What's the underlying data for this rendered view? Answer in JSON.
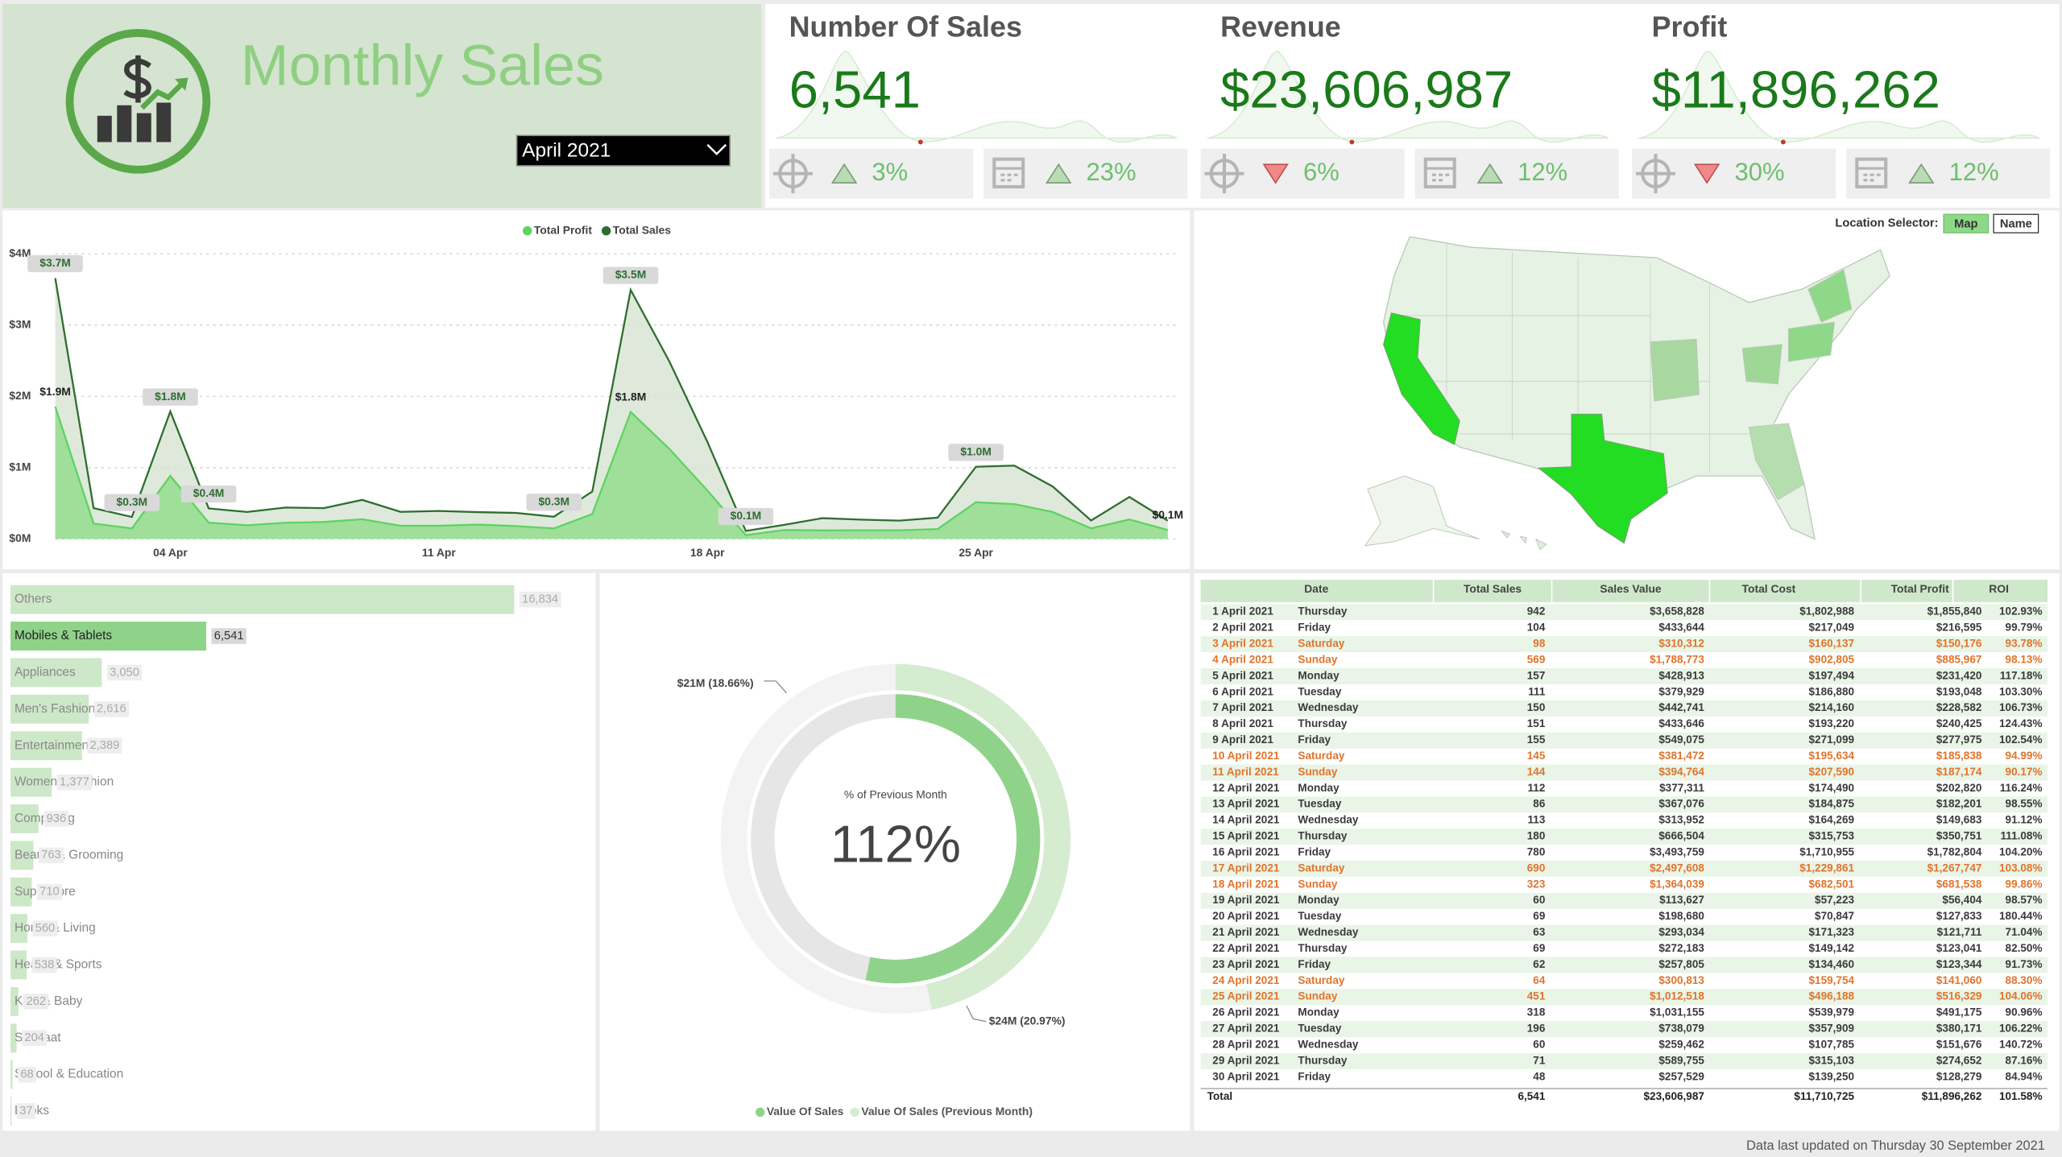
{
  "header": {
    "title": "Monthly Sales",
    "period": "April 2021"
  },
  "kpis": [
    {
      "title": "Number Of Sales",
      "value": "6,541",
      "changes": [
        {
          "value": "3%",
          "trend": "up"
        },
        {
          "value": "23%",
          "trend": "up"
        }
      ]
    },
    {
      "title": "Revenue",
      "value": "$23,606,987",
      "changes": [
        {
          "value": "6%",
          "trend": "down"
        },
        {
          "value": "12%",
          "trend": "up"
        }
      ]
    },
    {
      "title": "Profit",
      "value": "$11,896,262",
      "changes": [
        {
          "value": "30%",
          "trend": "down"
        },
        {
          "value": "12%",
          "trend": "up"
        }
      ]
    }
  ],
  "chart_data": [
    {
      "type": "area",
      "categories": [
        null,
        null,
        null,
        "04 Apr",
        null,
        null,
        null,
        null,
        null,
        null,
        "11 Apr",
        null,
        null,
        null,
        null,
        null,
        null,
        "18 Apr",
        null,
        null,
        null,
        null,
        null,
        null,
        "25 Apr",
        null,
        null,
        null,
        null,
        null
      ],
      "ylim": [
        0,
        4
      ],
      "yticks": [
        {
          "value": 0,
          "label": "$0M"
        },
        {
          "value": 1,
          "label": "$1M"
        },
        {
          "value": 2,
          "label": "$2M"
        },
        {
          "value": 3,
          "label": "$3M"
        },
        {
          "value": 4,
          "label": "$4M"
        }
      ],
      "grid": true,
      "series": [
        {
          "name": "Total Profit",
          "color": "#5fd35f",
          "fill": "#8fdc8a",
          "label_style": "plain",
          "values": [
            1.856,
            0.217,
            0.15,
            0.886,
            0.231,
            0.193,
            0.229,
            0.24,
            0.278,
            0.186,
            0.187,
            0.203,
            0.182,
            0.15,
            0.351,
            1.783,
            1.268,
            0.682,
            0.056,
            0.128,
            0.122,
            0.123,
            0.123,
            0.141,
            0.516,
            0.491,
            0.38,
            0.152,
            0.275,
            0.128
          ],
          "value_labels": [
            "$1.9M",
            null,
            null,
            null,
            null,
            null,
            null,
            null,
            null,
            null,
            null,
            null,
            null,
            null,
            null,
            "$1.8M",
            null,
            null,
            null,
            null,
            null,
            null,
            null,
            null,
            null,
            null,
            null,
            null,
            null,
            "$0.1M"
          ]
        },
        {
          "name": "Total Sales",
          "color": "#2e6e2e",
          "fill": "#d6e4d3",
          "label_style": "box",
          "values": [
            3.659,
            0.434,
            0.31,
            1.789,
            0.429,
            0.38,
            0.443,
            0.434,
            0.549,
            0.381,
            0.395,
            0.377,
            0.367,
            0.314,
            0.667,
            3.494,
            2.498,
            1.364,
            0.114,
            0.199,
            0.293,
            0.272,
            0.258,
            0.301,
            1.013,
            1.031,
            0.738,
            0.259,
            0.59,
            0.258
          ],
          "value_labels": [
            "$3.7M",
            null,
            "$0.3M",
            "$1.8M",
            "$0.4M",
            null,
            null,
            null,
            null,
            null,
            null,
            null,
            null,
            "$0.3M",
            null,
            "$3.5M",
            null,
            null,
            "$0.1M",
            null,
            null,
            null,
            null,
            null,
            "$1.0M",
            null,
            null,
            null,
            null,
            null
          ]
        }
      ]
    },
    {
      "type": "hbar",
      "color": "#cde8c8",
      "highlight_color": "#8fd38a",
      "highlight_index": 1,
      "categories": [
        "Others",
        "Mobiles & Tablets",
        "Appliances",
        "Men's Fashion",
        "Entertainment",
        "Women's Fashion",
        "Computing",
        "Beauty & Grooming",
        "Superstore",
        "Home & Living",
        "Health & Sports",
        "Kids & Baby",
        "Soghaat",
        "School & Education",
        "Books"
      ],
      "values": [
        16834,
        6541,
        3050,
        2616,
        2389,
        1377,
        936,
        763,
        710,
        560,
        538,
        262,
        204,
        68,
        37
      ],
      "value_labels": [
        "16,834",
        "6,541",
        "3,050",
        "2,616",
        "2,389",
        "1,377",
        "936",
        "763",
        "710",
        "560",
        "538",
        "262",
        "204",
        "68",
        "37"
      ]
    },
    {
      "type": "donut",
      "center_label": "% of Previous Month",
      "center_value": "112%",
      "series": [
        {
          "name": "Value Of Sales",
          "color": "#8fd38a",
          "value": 24,
          "value_label": "$24M (20.97%)"
        },
        {
          "name": "Value Of Sales (Previous Month)",
          "color": "#d5ecd1",
          "value": 21,
          "value_label": "$21M (18.66%)"
        }
      ]
    }
  ],
  "map": {
    "selector_label": "Location Selector:",
    "buttons": [
      "Map",
      "Name"
    ],
    "active": 0
  },
  "table": {
    "columns": [
      "Date",
      "Total Sales",
      "Sales Value",
      "Total Cost",
      "Total Profit",
      "ROI"
    ],
    "weekend_rows": [
      2,
      3,
      9,
      10,
      16,
      17,
      23,
      24
    ],
    "rows": [
      [
        "1 April 2021",
        "Thursday",
        "942",
        "$3,658,828",
        "$1,802,988",
        "$1,855,840",
        "102.93%"
      ],
      [
        "2 April 2021",
        "Friday",
        "104",
        "$433,644",
        "$217,049",
        "$216,595",
        "99.79%"
      ],
      [
        "3 April 2021",
        "Saturday",
        "98",
        "$310,312",
        "$160,137",
        "$150,176",
        "93.78%"
      ],
      [
        "4 April 2021",
        "Sunday",
        "569",
        "$1,788,773",
        "$902,805",
        "$885,967",
        "98.13%"
      ],
      [
        "5 April 2021",
        "Monday",
        "157",
        "$428,913",
        "$197,494",
        "$231,420",
        "117.18%"
      ],
      [
        "6 April 2021",
        "Tuesday",
        "111",
        "$379,929",
        "$186,880",
        "$193,048",
        "103.30%"
      ],
      [
        "7 April 2021",
        "Wednesday",
        "150",
        "$442,741",
        "$214,160",
        "$228,582",
        "106.73%"
      ],
      [
        "8 April 2021",
        "Thursday",
        "151",
        "$433,646",
        "$193,220",
        "$240,425",
        "124.43%"
      ],
      [
        "9 April 2021",
        "Friday",
        "155",
        "$549,075",
        "$271,099",
        "$277,975",
        "102.54%"
      ],
      [
        "10 April 2021",
        "Saturday",
        "145",
        "$381,472",
        "$195,634",
        "$185,838",
        "94.99%"
      ],
      [
        "11 April 2021",
        "Sunday",
        "144",
        "$394,764",
        "$207,590",
        "$187,174",
        "90.17%"
      ],
      [
        "12 April 2021",
        "Monday",
        "112",
        "$377,311",
        "$174,490",
        "$202,820",
        "116.24%"
      ],
      [
        "13 April 2021",
        "Tuesday",
        "86",
        "$367,076",
        "$184,875",
        "$182,201",
        "98.55%"
      ],
      [
        "14 April 2021",
        "Wednesday",
        "113",
        "$313,952",
        "$164,269",
        "$149,683",
        "91.12%"
      ],
      [
        "15 April 2021",
        "Thursday",
        "180",
        "$666,504",
        "$315,753",
        "$350,751",
        "111.08%"
      ],
      [
        "16 April 2021",
        "Friday",
        "780",
        "$3,493,759",
        "$1,710,955",
        "$1,782,804",
        "104.20%"
      ],
      [
        "17 April 2021",
        "Saturday",
        "690",
        "$2,497,608",
        "$1,229,861",
        "$1,267,747",
        "103.08%"
      ],
      [
        "18 April 2021",
        "Sunday",
        "323",
        "$1,364,039",
        "$682,501",
        "$681,538",
        "99.86%"
      ],
      [
        "19 April 2021",
        "Monday",
        "60",
        "$113,627",
        "$57,223",
        "$56,404",
        "98.57%"
      ],
      [
        "20 April 2021",
        "Tuesday",
        "69",
        "$198,680",
        "$70,847",
        "$127,833",
        "180.44%"
      ],
      [
        "21 April 2021",
        "Wednesday",
        "63",
        "$293,034",
        "$171,323",
        "$121,711",
        "71.04%"
      ],
      [
        "22 April 2021",
        "Thursday",
        "69",
        "$272,183",
        "$149,142",
        "$123,041",
        "82.50%"
      ],
      [
        "23 April 2021",
        "Friday",
        "62",
        "$257,805",
        "$134,460",
        "$123,344",
        "91.73%"
      ],
      [
        "24 April 2021",
        "Saturday",
        "64",
        "$300,813",
        "$159,754",
        "$141,060",
        "88.30%"
      ],
      [
        "25 April 2021",
        "Sunday",
        "451",
        "$1,012,518",
        "$496,188",
        "$516,329",
        "104.06%"
      ],
      [
        "26 April 2021",
        "Monday",
        "318",
        "$1,031,155",
        "$539,979",
        "$491,175",
        "90.96%"
      ],
      [
        "27 April 2021",
        "Tuesday",
        "196",
        "$738,079",
        "$357,909",
        "$380,171",
        "106.22%"
      ],
      [
        "28 April 2021",
        "Wednesday",
        "60",
        "$259,462",
        "$107,785",
        "$151,676",
        "140.72%"
      ],
      [
        "29 April 2021",
        "Thursday",
        "71",
        "$589,755",
        "$315,103",
        "$274,652",
        "87.16%"
      ],
      [
        "30 April 2021",
        "Friday",
        "48",
        "$257,529",
        "$139,250",
        "$128,279",
        "84.94%"
      ]
    ],
    "total": [
      "Total",
      "6,541",
      "$23,606,987",
      "$11,710,725",
      "$11,896,262",
      "101.58%"
    ]
  },
  "footer": "Data last updated on Thursday 30 September 2021"
}
